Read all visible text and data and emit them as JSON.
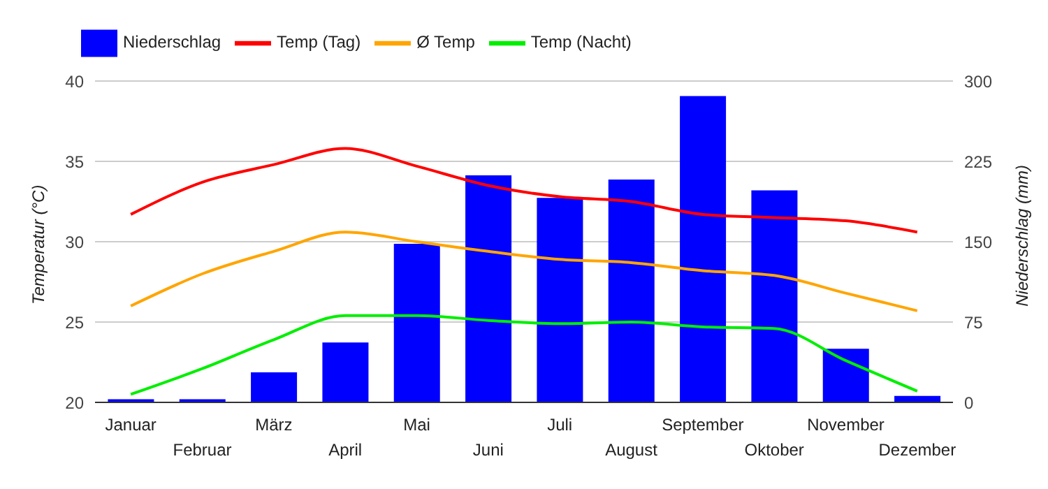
{
  "chart_data": {
    "type": "line",
    "categories": [
      "Januar",
      "Februar",
      "März",
      "April",
      "Mai",
      "Juni",
      "Juli",
      "August",
      "September",
      "Oktober",
      "November",
      "Dezember"
    ],
    "series": [
      {
        "name": "Niederschlag",
        "type": "bar",
        "axis": "y2",
        "color": "#0000ff",
        "values": [
          3,
          3,
          28,
          56,
          148,
          212,
          191,
          208,
          286,
          198,
          50,
          6
        ]
      },
      {
        "name": "Temp (Tag)",
        "color": "#ff0000",
        "values": [
          31.7,
          33.7,
          34.8,
          35.8,
          34.7,
          33.5,
          32.8,
          32.5,
          31.7,
          31.5,
          31.3,
          30.6
        ]
      },
      {
        "name": "Ø Temp",
        "color": "#ffa500",
        "values": [
          26.0,
          28.0,
          29.4,
          30.6,
          30.0,
          29.4,
          28.9,
          28.7,
          28.2,
          27.9,
          26.8,
          25.7
        ]
      },
      {
        "name": "Temp (Nacht)",
        "color": "#00ee00",
        "values": [
          20.5,
          22.1,
          23.9,
          25.4,
          25.4,
          25.1,
          24.9,
          25.0,
          24.7,
          24.6,
          22.6,
          20.7
        ]
      }
    ],
    "ylabel": "Temperatur (°C)",
    "y2label": "Niederschlag (mm)",
    "ylim": [
      20,
      40
    ],
    "yticks": [
      20,
      25,
      30,
      35,
      40
    ],
    "y2lim": [
      0,
      300
    ],
    "y2ticks": [
      0,
      75,
      150,
      225,
      300
    ],
    "grid": "y",
    "legend": "top left",
    "marker": "none",
    "line_style": "solid"
  }
}
